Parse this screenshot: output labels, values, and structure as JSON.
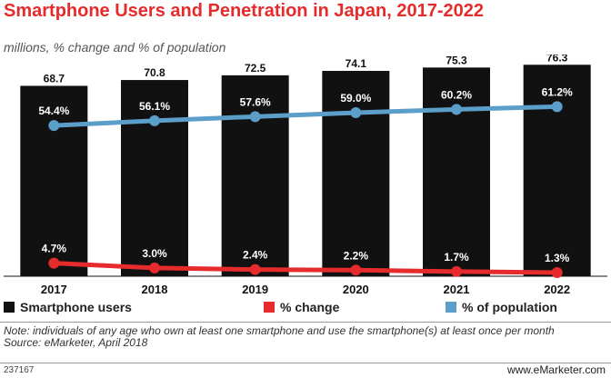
{
  "header": {
    "title": "Smartphone Users and Penetration in Japan, 2017-2022",
    "subtitle": "millions, % change and % of population"
  },
  "chart_data": {
    "type": "bar",
    "categories": [
      "2017",
      "2018",
      "2019",
      "2020",
      "2021",
      "2022"
    ],
    "ylim": [
      0,
      80
    ],
    "series": [
      {
        "name": "Smartphone users",
        "type": "bar",
        "values": [
          68.7,
          70.8,
          72.5,
          74.1,
          75.3,
          76.3
        ],
        "labels": [
          "68.7",
          "70.8",
          "72.5",
          "74.1",
          "75.3",
          "76.3"
        ],
        "color": "#111111"
      },
      {
        "name": "% change",
        "type": "line",
        "values": [
          4.7,
          3.0,
          2.4,
          2.2,
          1.7,
          1.3
        ],
        "labels": [
          "4.7%",
          "3.0%",
          "2.4%",
          "2.2%",
          "1.7%",
          "1.3%"
        ],
        "color": "#e52b2b"
      },
      {
        "name": "% of population",
        "type": "line",
        "values": [
          54.4,
          56.1,
          57.6,
          59.0,
          60.2,
          61.2
        ],
        "labels": [
          "54.4%",
          "56.1%",
          "57.6%",
          "59.0%",
          "60.2%",
          "61.2%"
        ],
        "color": "#5b9ec9"
      }
    ],
    "legend_position": "bottom",
    "grid": false
  },
  "legend": [
    {
      "label": "Smartphone users",
      "color": "#111111"
    },
    {
      "label": "% change",
      "color": "#e52b2b"
    },
    {
      "label": "% of population",
      "color": "#5b9ec9"
    }
  ],
  "footer": {
    "note": "Note: individuals of any age who own at least one smartphone and use the smartphone(s) at least once per month",
    "source": "Source: eMarketer, April 2018",
    "chart_id": "237167",
    "brand": "www.eMarketer.com"
  }
}
